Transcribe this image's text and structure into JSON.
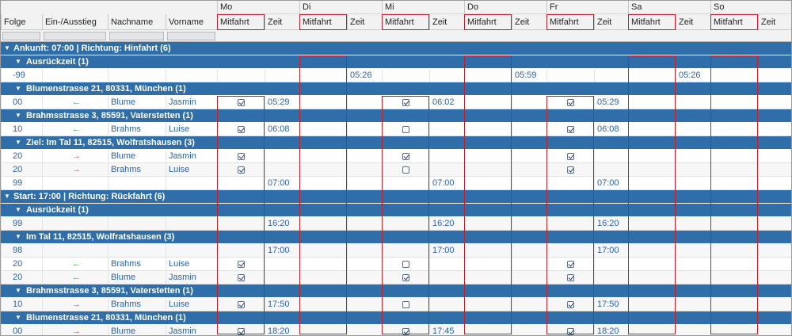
{
  "days": [
    "Mo",
    "Di",
    "Mi",
    "Do",
    "Fr",
    "Sa",
    "So"
  ],
  "columns": {
    "folge": "Folge",
    "einaus": "Ein-/Ausstieg",
    "nachname": "Nachname",
    "vorname": "Vorname",
    "mitfahrt": "Mitfahrt",
    "zeit": "Zeit"
  },
  "rows": [
    {
      "type": "group",
      "level": 0,
      "title": "Ankunft: 07:00 | Richtung: Hinfahrt (6)"
    },
    {
      "type": "group",
      "level": 1,
      "title": "Ausrückzeit (1)"
    },
    {
      "type": "data",
      "folge": "-99",
      "arrow": "",
      "nachname": "",
      "vorname": "",
      "days": [
        [
          "",
          ""
        ],
        [
          "05:26"
        ],
        [
          "",
          ""
        ],
        [
          "05:59"
        ],
        [
          "",
          ""
        ],
        [
          "05:26"
        ],
        [
          "",
          ""
        ]
      ]
    },
    {
      "type": "group",
      "level": 1,
      "title": "Blumenstrasse 21, 80331, München (1)"
    },
    {
      "type": "data",
      "folge": "00",
      "arrow": "green",
      "nachname": "Blume",
      "vorname": "Jasmin",
      "cb": [
        true,
        null,
        true,
        null,
        true,
        null,
        null
      ],
      "times": [
        "05:29",
        "",
        "06:02",
        "",
        "05:29",
        "",
        ""
      ]
    },
    {
      "type": "group",
      "level": 1,
      "title": "Brahmsstrasse 3, 85591, Vaterstetten (1)"
    },
    {
      "type": "data",
      "folge": "10",
      "arrow": "green",
      "nachname": "Brahms",
      "vorname": "Luise",
      "cb": [
        true,
        null,
        false,
        null,
        true,
        null,
        null
      ],
      "times": [
        "06:08",
        "",
        "",
        "",
        "06:08",
        "",
        ""
      ]
    },
    {
      "type": "group",
      "level": 1,
      "title": "Ziel: Im Tal 11, 82515, Wolfratshausen (3)"
    },
    {
      "type": "data",
      "folge": "20",
      "arrow": "red",
      "nachname": "Blume",
      "vorname": "Jasmin",
      "cb": [
        true,
        null,
        true,
        null,
        true,
        null,
        null
      ],
      "times": [
        "",
        "",
        "",
        "",
        "",
        "",
        ""
      ]
    },
    {
      "type": "data",
      "folge": "20",
      "arrow": "red",
      "nachname": "Brahms",
      "vorname": "Luise",
      "cb": [
        true,
        null,
        false,
        null,
        true,
        null,
        null
      ],
      "times": [
        "",
        "",
        "",
        "",
        "",
        "",
        ""
      ]
    },
    {
      "type": "data",
      "folge": "99",
      "arrow": "",
      "nachname": "",
      "vorname": "",
      "cb": [
        null,
        null,
        null,
        null,
        null,
        null,
        null
      ],
      "times": [
        "07:00",
        "",
        "07:00",
        "",
        "07:00",
        "",
        ""
      ]
    },
    {
      "type": "group",
      "level": 0,
      "title": "Start: 17:00 | Richtung: Rückfahrt (6)"
    },
    {
      "type": "group",
      "level": 1,
      "title": "Ausrückzeit (1)"
    },
    {
      "type": "data",
      "folge": "99",
      "arrow": "",
      "nachname": "",
      "vorname": "",
      "cb": [
        null,
        null,
        null,
        null,
        null,
        null,
        null
      ],
      "times": [
        "16:20",
        "",
        "16:20",
        "",
        "16:20",
        "",
        ""
      ]
    },
    {
      "type": "group",
      "level": 1,
      "title": "Im Tal 11, 82515, Wolfratshausen (3)"
    },
    {
      "type": "data",
      "folge": "98",
      "arrow": "",
      "nachname": "",
      "vorname": "",
      "cb": [
        null,
        null,
        null,
        null,
        null,
        null,
        null
      ],
      "times": [
        "17:00",
        "",
        "17:00",
        "",
        "17:00",
        "",
        ""
      ]
    },
    {
      "type": "data",
      "folge": "20",
      "arrow": "green",
      "nachname": "Brahms",
      "vorname": "Luise",
      "cb": [
        true,
        null,
        false,
        null,
        true,
        null,
        null
      ],
      "times": [
        "",
        "",
        "",
        "",
        "",
        "",
        ""
      ]
    },
    {
      "type": "data",
      "folge": "20",
      "arrow": "green",
      "nachname": "Blume",
      "vorname": "Jasmin",
      "cb": [
        true,
        null,
        true,
        null,
        true,
        null,
        null
      ],
      "times": [
        "",
        "",
        "",
        "",
        "",
        "",
        ""
      ]
    },
    {
      "type": "group",
      "level": 1,
      "title": "Brahmsstrasse 3, 85591, Vaterstetten (1)"
    },
    {
      "type": "data",
      "folge": "10",
      "arrow": "red",
      "nachname": "Brahms",
      "vorname": "Luise",
      "cb": [
        true,
        null,
        false,
        null,
        true,
        null,
        null
      ],
      "times": [
        "17:50",
        "",
        "",
        "",
        "17:50",
        "",
        ""
      ]
    },
    {
      "type": "group",
      "level": 1,
      "title": "Blumenstrasse 21, 80331, München (1)"
    },
    {
      "type": "data",
      "folge": "00",
      "arrow": "red",
      "nachname": "Blume",
      "vorname": "Jasmin",
      "cb": [
        true,
        null,
        true,
        null,
        true,
        null,
        null
      ],
      "times": [
        "18:20",
        "",
        "17:45",
        "",
        "18:20",
        "",
        ""
      ]
    }
  ],
  "colors": {
    "group": "#2f6ea8",
    "time": "#2b63a8",
    "highlight": "#c0202a",
    "arrow_in": "#2fae3a",
    "arrow_out": "#d24a56"
  },
  "icons": {
    "arrow_in": "arrow-left-icon",
    "arrow_out": "arrow-right-icon",
    "expand": "triangle-down-icon",
    "checkbox": "checkbox-icon"
  }
}
